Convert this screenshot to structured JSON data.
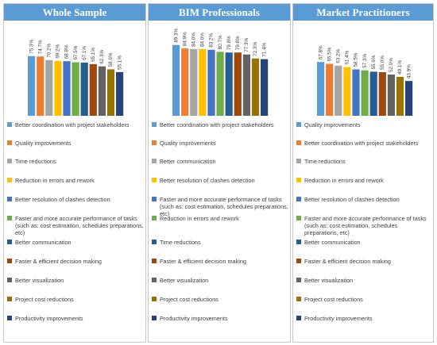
{
  "chart_data": [
    {
      "type": "bar",
      "title": "Whole Sample",
      "categories": [
        "Better coordination with project stakeholders",
        "Quality improvements",
        "Time reductions",
        "Reduction in errors and rework",
        "Better resolution of clashes detection",
        "Faster and more accurate performance of tasks (such as: cost estimation, schedules preparations, etc)",
        "Better communication",
        "Faster & efficient decision making",
        "Better visualization",
        "Project cost reductions",
        "Productivity improvements"
      ],
      "values": [
        75.3,
        74.7,
        70.2,
        69.2,
        68.8,
        67.5,
        67.1,
        65.1,
        62.3,
        58.6,
        55.1
      ],
      "value_labels": [
        "75.3%",
        "74.7%",
        "70.2%",
        "69.2%",
        "68.8%",
        "67.5%",
        "67.1%",
        "65.1%",
        "62.3%",
        "58.6%",
        "55.1%"
      ],
      "colors": [
        "#5b9bd5",
        "#ed7d31",
        "#a5a5a5",
        "#ffc000",
        "#4472c4",
        "#70ad47",
        "#255e91",
        "#9e480e",
        "#636363",
        "#997300",
        "#264478"
      ],
      "ylim": [
        0,
        100
      ],
      "legend_position": "bottom"
    },
    {
      "type": "bar",
      "title": "BIM Professionals",
      "categories": [
        "Better coordination with project stakeholders",
        "Quality improvements",
        "Better communication",
        "Better resolution of clashes detection",
        "Faster and more accurate performance of tasks (such as: cost estimation, schedules preparations, etc)",
        "Reduction in errors and rework",
        "Time reductions",
        "Faster & efficient decision making",
        "Better visualization",
        "Project cost reductions",
        "Productivity improvements"
      ],
      "values": [
        89.3,
        84.9,
        84.0,
        84.0,
        83.2,
        80.7,
        79.8,
        79.8,
        77.3,
        72.3,
        71.4
      ],
      "value_labels": [
        "89.3%",
        "84.9%",
        "84.0%",
        "84.0%",
        "83.2%",
        "80.7%",
        "79.8%",
        "79.8%",
        "77.3%",
        "72.3%",
        "71.4%"
      ],
      "colors": [
        "#5b9bd5",
        "#ed7d31",
        "#a5a5a5",
        "#ffc000",
        "#4472c4",
        "#70ad47",
        "#255e91",
        "#9e480e",
        "#636363",
        "#997300",
        "#264478"
      ],
      "ylim": [
        0,
        100
      ],
      "legend_position": "bottom"
    },
    {
      "type": "bar",
      "title": "Market Practitioners",
      "categories": [
        "Quality improvements",
        "Better coordination with project stakeholders",
        "Time reductions",
        "Reduction in errors and rework",
        "Better resolution of clashes detection",
        "Faster and more accurate performance of tasks (such as: cost estimation, schedules preparations, etc)",
        "Better communication",
        "Faster & efficient decision making",
        "Better visualization",
        "Project cost reductions",
        "Productivity improvements"
      ],
      "values": [
        67.8,
        65.5,
        63.2,
        61.4,
        58.5,
        57.3,
        55.6,
        55.0,
        52.0,
        49.1,
        43.9
      ],
      "value_labels": [
        "67.8%",
        "65.5%",
        "63.2%",
        "61.4%",
        "58.5%",
        "57.3%",
        "55.6%",
        "55.0%",
        "52.0%",
        "49.1%",
        "43.9%"
      ],
      "colors": [
        "#5b9bd5",
        "#ed7d31",
        "#a5a5a5",
        "#ffc000",
        "#4472c4",
        "#70ad47",
        "#255e91",
        "#9e480e",
        "#636363",
        "#997300",
        "#264478"
      ],
      "ylim": [
        0,
        100
      ],
      "legend_position": "bottom"
    }
  ]
}
